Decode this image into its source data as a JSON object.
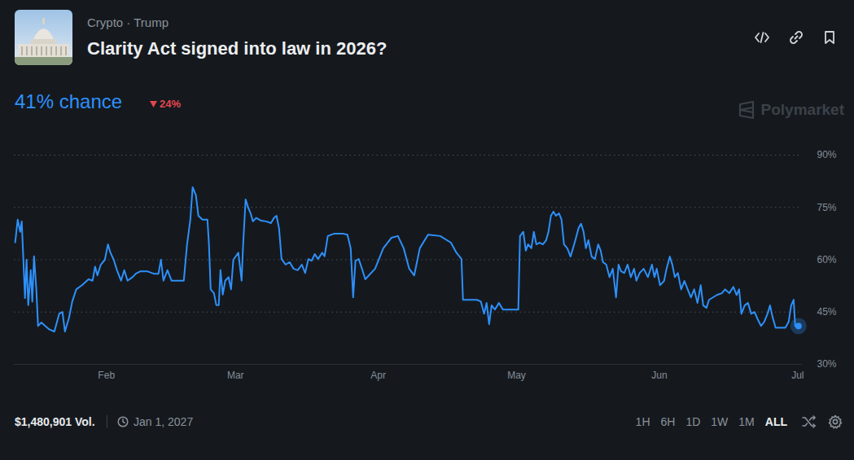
{
  "chart_data": {
    "type": "line",
    "title": "Clarity Act signed into law in 2026?",
    "subtitle": "Crypto · Trump",
    "color": "#2e90fa",
    "grid": true,
    "x": [
      "2026-01-12T05:00",
      "2026-01-12T18:00",
      "2026-01-13T07:00",
      "2026-01-13T15:00",
      "2026-01-14T08:00",
      "2026-01-14T16:00",
      "2026-01-15T01:00",
      "2026-01-15T14:00",
      "2026-01-15T22:00",
      "2026-01-16T07:00",
      "2026-01-16T19:00",
      "2026-01-17T04:00",
      "2026-01-17T21:00",
      "2026-01-18T18:00",
      "2026-01-19T15:00",
      "2026-01-20T17:00",
      "2026-01-21T18:00",
      "2026-01-22T11:00",
      "2026-01-23T00:00",
      "2026-01-23T21:00",
      "2026-01-24T14:00",
      "2026-01-25T11:00",
      "2026-01-26T17:00",
      "2026-01-28T03:00",
      "2026-01-29T00:00",
      "2026-01-29T13:00",
      "2026-01-30T01:00",
      "2026-01-30T18:00",
      "2026-01-31T16:00",
      "2026-02-01T08:00",
      "2026-02-01T21:00",
      "2026-02-02T14:00",
      "2026-02-03T07:00",
      "2026-02-04T04:00",
      "2026-02-04T21:00",
      "2026-02-05T14:00",
      "2026-02-06T16:00",
      "2026-02-07T09:00",
      "2026-02-08T10:00",
      "2026-02-09T20:00",
      "2026-02-11T06:00",
      "2026-02-12T07:00",
      "2026-02-12T20:00",
      "2026-02-13T09:00",
      "2026-02-14T06:00",
      "2026-02-15T03:00",
      "2026-02-16T13:00",
      "2026-02-17T19:00",
      "2026-02-18T12:00",
      "2026-02-19T05:00",
      "2026-02-19T17:00",
      "2026-02-20T10:00",
      "2026-02-20T23:00",
      "2026-02-21T20:00",
      "2026-02-22T22:00",
      "2026-02-23T06:00",
      "2026-02-23T15:00",
      "2026-02-24T08:00",
      "2026-02-24T20:00",
      "2026-02-25T09:00",
      "2026-02-25T18:00",
      "2026-02-26T06:00",
      "2026-02-26T19:00",
      "2026-02-27T12:00",
      "2026-02-28T01:00",
      "2026-02-28T13:00",
      "2026-03-01T02:00",
      "2026-03-01T15:00",
      "2026-03-02T08:00",
      "2026-03-02T16:00",
      "2026-03-03T05:00",
      "2026-03-03T18:00",
      "2026-03-04T07:00",
      "2026-03-04T19:00",
      "2026-03-05T12:00",
      "2026-03-06T14:00",
      "2026-03-07T15:00",
      "2026-03-08T17:00",
      "2026-03-09T09:00",
      "2026-03-09T22:00",
      "2026-03-10T11:00",
      "2026-03-11T00:00",
      "2026-03-11T21:00",
      "2026-03-12T18:00",
      "2026-03-13T15:00",
      "2026-03-14T12:00",
      "2026-03-15T10:00",
      "2026-03-16T03:00",
      "2026-03-16T20:00",
      "2026-03-17T13:00",
      "2026-03-18T05:00",
      "2026-03-18T22:00",
      "2026-03-19T20:00",
      "2026-03-20T08:00",
      "2026-03-21T01:00",
      "2026-03-22T11:00",
      "2026-03-24T06:00",
      "2026-03-25T07:00",
      "2026-03-26T00:00",
      "2026-03-26T13:00",
      "2026-03-27T01:00",
      "2026-03-27T18:00",
      "2026-03-28T11:00",
      "2026-03-29T04:00",
      "2026-03-31T07:00",
      "2026-04-02T02:00",
      "2026-04-03T20:00",
      "2026-04-05T06:00",
      "2026-04-06T12:00",
      "2026-04-07T17:00",
      "2026-04-08T19:00",
      "2026-04-10T00:00",
      "2026-04-11T19:00",
      "2026-04-14T10:00",
      "2026-04-16T18:00",
      "2026-04-17T23:00",
      "2026-04-19T01:00",
      "2026-04-19T09:00",
      "2026-04-20T15:00",
      "2026-04-22T09:00",
      "2026-04-23T06:00",
      "2026-04-23T23:00",
      "2026-04-24T12:00",
      "2026-04-25T01:00",
      "2026-04-25T14:00",
      "2026-04-26T07:00",
      "2026-04-27T04:00",
      "2026-04-28T01:00",
      "2026-04-30T00:00",
      "2026-05-01T09:00",
      "2026-05-01T18:00",
      "2026-05-02T11:00",
      "2026-05-03T00:00",
      "2026-05-03T12:00",
      "2026-05-04T05:00",
      "2026-05-04T18:00",
      "2026-05-05T07:00",
      "2026-05-06T00:00",
      "2026-05-06T17:00",
      "2026-05-07T10:00",
      "2026-05-07T22:00",
      "2026-05-08T11:00",
      "2026-05-09T00:00",
      "2026-05-09T13:00",
      "2026-05-10T05:00",
      "2026-05-10T18:00",
      "2026-05-11T07:00",
      "2026-05-12T00:00",
      "2026-05-12T17:00",
      "2026-05-13T06:00",
      "2026-05-13T18:00",
      "2026-05-14T11:00",
      "2026-05-15T00:00",
      "2026-05-15T13:00",
      "2026-05-16T01:00",
      "2026-05-16T14:00",
      "2026-05-17T07:00",
      "2026-05-18T00:00",
      "2026-05-18T17:00",
      "2026-05-19T06:00",
      "2026-05-19T18:00",
      "2026-05-20T11:00",
      "2026-05-21T04:00",
      "2026-05-21T21:00",
      "2026-05-22T14:00",
      "2026-05-23T03:00",
      "2026-05-23T16:00",
      "2026-05-24T09:00",
      "2026-05-25T02:00",
      "2026-05-25T19:00",
      "2026-05-26T12:00",
      "2026-05-27T00:00",
      "2026-05-27T17:00",
      "2026-05-28T14:00",
      "2026-05-29T12:00",
      "2026-05-30T09:00",
      "2026-05-30T22:00",
      "2026-05-31T10:00",
      "2026-06-01T03:00",
      "2026-06-02T00:00",
      "2026-06-02T13:00",
      "2026-06-03T06:00",
      "2026-06-03T19:00",
      "2026-06-04T08:00",
      "2026-06-05T00:00",
      "2026-06-05T17:00",
      "2026-06-06T10:00",
      "2026-06-07T03:00",
      "2026-06-07T20:00",
      "2026-06-08T13:00",
      "2026-06-09T06:00",
      "2026-06-09T23:00",
      "2026-06-10T12:00",
      "2026-06-11T05:00",
      "2026-06-11T18:00",
      "2026-06-12T15:00",
      "2026-06-13T12:00",
      "2026-06-14T13:00",
      "2026-06-15T06:00",
      "2026-06-16T04:00",
      "2026-06-17T01:00",
      "2026-06-17T18:00",
      "2026-06-18T07:00",
      "2026-06-18T19:00",
      "2026-06-19T12:00",
      "2026-06-20T05:00",
      "2026-06-20T22:00",
      "2026-06-21T15:00",
      "2026-06-22T08:00",
      "2026-06-23T01:00",
      "2026-06-23T18:00",
      "2026-06-24T11:00",
      "2026-06-25T00:00",
      "2026-06-25T12:00",
      "2026-06-26T05:00",
      "2026-06-27T07:00",
      "2026-06-28T08:00",
      "2026-06-29T01:00",
      "2026-06-29T14:00",
      "2026-06-30T03:00",
      "2026-06-30T11:00",
      "2026-07-01T04:00"
    ],
    "values": [
      65,
      71.5,
      68,
      71,
      49,
      60,
      47,
      57,
      48,
      61,
      51.5,
      41,
      42,
      41,
      40,
      39.4,
      44.5,
      45,
      39.4,
      43.3,
      48,
      51.5,
      52.7,
      54.4,
      54,
      58,
      55.5,
      58.5,
      60,
      64.4,
      62,
      60,
      57,
      54,
      57,
      54,
      55,
      56,
      56.7,
      56.7,
      56,
      56,
      60,
      54,
      57,
      54,
      54,
      54,
      64.4,
      71.5,
      80.8,
      78.5,
      72.6,
      71.5,
      71.5,
      64.4,
      51.5,
      50.4,
      47,
      47,
      57,
      50,
      54,
      55,
      51.5,
      60,
      61,
      62,
      54,
      64.4,
      77.3,
      75,
      73.3,
      71,
      72,
      71.2,
      71,
      70.5,
      72,
      72.6,
      69,
      60.2,
      58.6,
      59.3,
      57.4,
      57,
      58.6,
      56.2,
      60.2,
      59.7,
      61.6,
      60.2,
      62,
      61,
      66.8,
      67.5,
      67.5,
      67.2,
      63.3,
      49.2,
      59.7,
      60.2,
      57.4,
      54.4,
      57.4,
      63.3,
      66.3,
      66.8,
      63.3,
      57.4,
      55.5,
      63.3,
      67.2,
      66.8,
      64.9,
      62,
      60.2,
      48.5,
      48.5,
      48.5,
      48,
      44.5,
      47.6,
      41.5,
      46.9,
      45.7,
      47.6,
      45.7,
      45.7,
      45.7,
      66.8,
      68,
      62.6,
      64.4,
      63.3,
      68,
      64.4,
      64.9,
      64.4,
      65.6,
      68,
      72.6,
      73.8,
      72.6,
      73.3,
      71.5,
      64.4,
      63.3,
      60.9,
      63.3,
      65.6,
      69.1,
      70.3,
      68,
      63.3,
      65.6,
      60.9,
      60.2,
      64.4,
      62.6,
      59.3,
      58.6,
      55,
      57.4,
      49.2,
      58.6,
      56.7,
      56.2,
      58.6,
      55,
      57.4,
      54,
      56.2,
      57.4,
      55,
      58.6,
      55,
      57.4,
      52.7,
      53.9,
      57.4,
      60.9,
      58.6,
      55,
      56.2,
      51.5,
      53.9,
      51.5,
      49.2,
      51.5,
      47.6,
      52.7,
      46.9,
      46.2,
      48.5,
      49.2,
      49.9,
      50.4,
      51.5,
      50.4,
      52.2,
      49.9,
      51.5,
      44.5,
      46.9,
      47.6,
      44.5,
      45,
      42.9,
      41,
      42.2,
      44.5,
      46.9,
      43.8,
      40.5,
      40.5,
      40.5,
      42.2,
      46.9,
      48.5,
      41,
      41
    ],
    "xlim": [
      "2026-01-12T00:00",
      "2026-07-02T00:00"
    ],
    "xticks": [
      {
        "value": "2026-02-01T00:00",
        "label": "Feb"
      },
      {
        "value": "2026-03-01T00:00",
        "label": "Mar"
      },
      {
        "value": "2026-04-01T00:00",
        "label": "Apr"
      },
      {
        "value": "2026-05-01T00:00",
        "label": "May"
      },
      {
        "value": "2026-06-01T00:00",
        "label": "Jun"
      },
      {
        "value": "2026-07-01T00:00",
        "label": "Jul"
      }
    ],
    "ylim": [
      30,
      90
    ],
    "yticks": [
      {
        "value": 30,
        "label": "30%"
      },
      {
        "value": 45,
        "label": "45%"
      },
      {
        "value": 60,
        "label": "60%"
      },
      {
        "value": 75,
        "label": "75%"
      },
      {
        "value": 90,
        "label": "90%"
      }
    ]
  },
  "header": {
    "chance": "41% chance",
    "change": "24%",
    "watermark": "Polymarket"
  },
  "footer": {
    "volume": "$1,480,901 Vol.",
    "end_date": "Jan 1, 2027",
    "ranges": [
      "1H",
      "6H",
      "1D",
      "1W",
      "1M",
      "ALL"
    ],
    "selected_range": "ALL"
  }
}
